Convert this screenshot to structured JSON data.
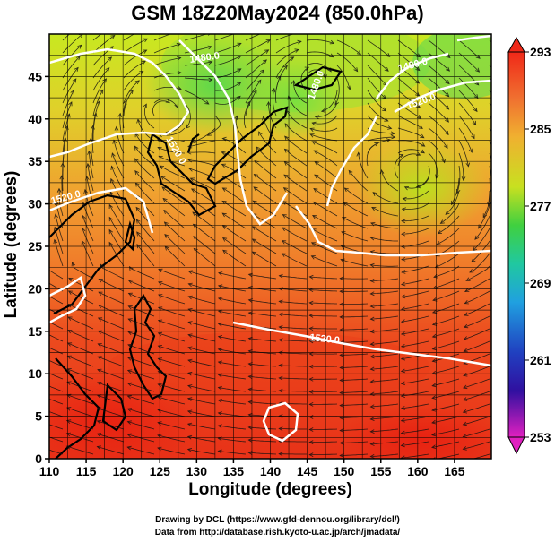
{
  "title": "GSM 18Z20May2024 (850.0hPa)",
  "xlabel": "Longitude (degrees)",
  "ylabel": "Latitude  (degrees)",
  "x_ticks": [
    "110",
    "115",
    "120",
    "125",
    "130",
    "135",
    "140",
    "145",
    "150",
    "155",
    "160",
    "165"
  ],
  "y_ticks": [
    "0",
    "5",
    "10",
    "15",
    "20",
    "25",
    "30",
    "35",
    "40",
    "45"
  ],
  "colorbar": {
    "ticks": [
      "293",
      "285",
      "277",
      "269",
      "261",
      "253"
    ],
    "min": 253,
    "max": 293
  },
  "contour_labels": [
    "1480.0",
    "1480.0",
    "1520.0",
    "1520.0",
    "1520.0",
    "1520.0",
    "1480.0"
  ],
  "credits": {
    "line1": "Drawing by DCL (https://www.gfd-dennou.org/library/dcl/)",
    "line2": "Data from http://database.rish.kyoto-u.ac.jp/arch/jmadata/"
  },
  "chart_data": {
    "type": "heatmap",
    "field": "temperature (K) with geopotential height contours and wind streamlines",
    "xlim": [
      110,
      170
    ],
    "ylim": [
      0,
      50
    ],
    "clim": [
      253,
      293
    ],
    "contour_interval_m": 20,
    "contour_levels_labeled": [
      1480.0,
      1520.0
    ],
    "warm_centers": [
      {
        "lon": 115,
        "lat": 5,
        "approx_K": 291
      },
      {
        "lon": 160,
        "lat": 2,
        "approx_K": 290
      }
    ],
    "cold_centers": [
      {
        "lon": 132,
        "lat": 44,
        "approx_K": 277
      },
      {
        "lon": 160,
        "lat": 34,
        "approx_K": 278
      }
    ],
    "low_centers": [
      {
        "lon": 125,
        "lat": 41
      },
      {
        "lon": 160,
        "lat": 34
      },
      {
        "lon": 146,
        "lat": 45
      }
    ]
  }
}
